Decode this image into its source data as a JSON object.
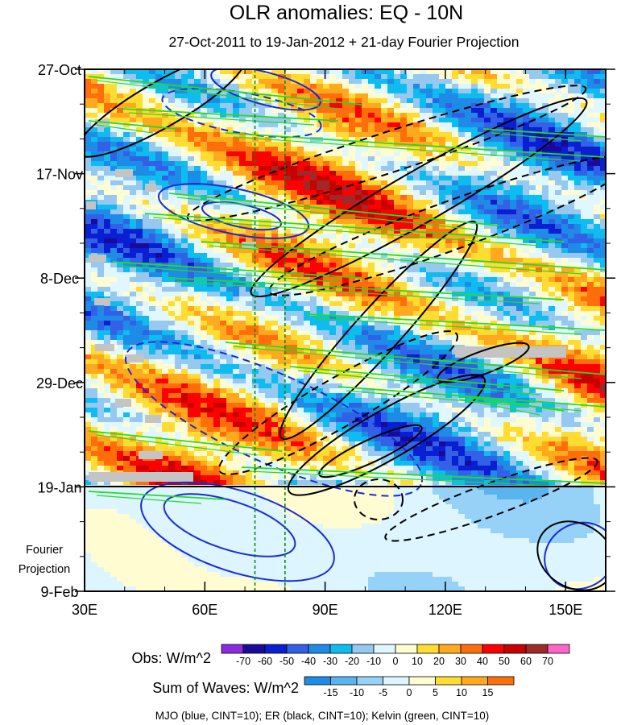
{
  "chart_data": {
    "type": "heatmap",
    "title": "OLR anomalies: EQ - 10N",
    "subtitle": "27-Oct-2011 to 19-Jan-2012 + 21-day Fourier Projection",
    "x_ticks": [
      "30E",
      "60E",
      "90E",
      "120E",
      "150E"
    ],
    "x_tick_values": [
      30,
      60,
      90,
      120,
      150
    ],
    "x_range": [
      30,
      160
    ],
    "y_ticks": [
      "27-Oct",
      "17-Nov",
      "8-Dec",
      "29-Dec",
      "19-Jan",
      "9-Feb"
    ],
    "y_tick_days": [
      0,
      21,
      42,
      63,
      84,
      105
    ],
    "y_range_days": [
      0,
      105
    ],
    "projection_label_1": "Fourier",
    "projection_label_2": "Projection",
    "projection_start_day": 84,
    "reference_longitudes": [
      72.5,
      80
    ],
    "obs_colorbar": {
      "label": "Obs: W/m^2",
      "levels": [
        "-70",
        "-60",
        "-50",
        "-40",
        "-30",
        "-20",
        "-10",
        "0",
        "10",
        "20",
        "30",
        "40",
        "50",
        "60",
        "70"
      ],
      "colors": [
        "#8a2be2",
        "#1a0a9c",
        "#0a1ed2",
        "#3260e6",
        "#1e8ce6",
        "#0fbcf0",
        "#96c8f0",
        "#e1f7ff",
        "#fffcd2",
        "#ffdc32",
        "#ffaa1e",
        "#ff6e0a",
        "#ff0000",
        "#c80000",
        "#a02828",
        "#ff64c8"
      ]
    },
    "waves_colorbar": {
      "label": "Sum of Waves: W/m^2",
      "levels": [
        "-15",
        "-10",
        "-5",
        "0",
        "5",
        "10",
        "15"
      ],
      "colors": [
        "#1e8ce6",
        "#5ab4f0",
        "#96d2f8",
        "#dcf5ff",
        "#fffcd2",
        "#ffdc32",
        "#ffaa1e",
        "#ff6e0a"
      ]
    },
    "footer": "MJO (blue, CINT=10); ER (black, CINT=10); Kelvin (green, CINT=10)",
    "contours": {
      "mjo_color": "#1a2ad8",
      "er_color": "#000000",
      "kelvin_color": "#22dd22",
      "reference_line_color": "#118811"
    }
  }
}
